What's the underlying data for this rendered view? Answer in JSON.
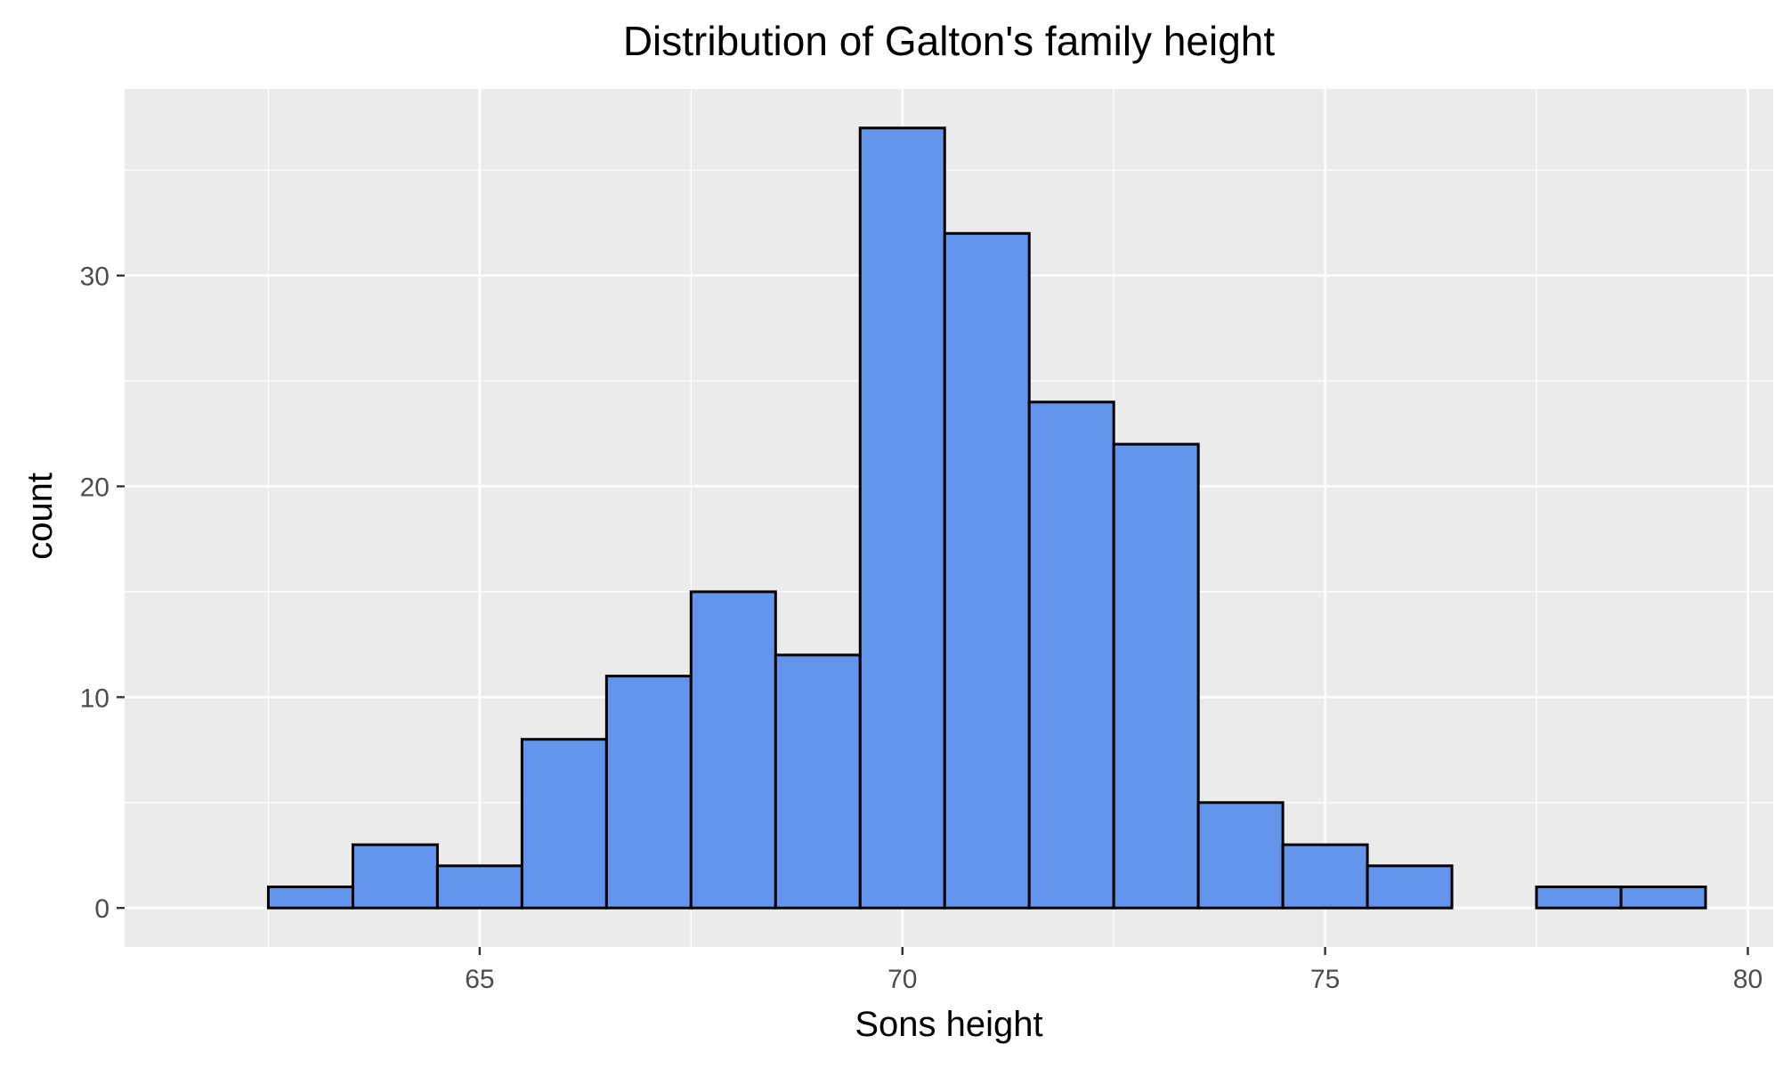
{
  "chart_data": {
    "type": "bar",
    "title": "Distribution of Galton's family height",
    "xlabel": "Sons height",
    "ylabel": "count",
    "bin_width": 1,
    "bins": [
      {
        "start": 62.5,
        "end": 63.5,
        "count": 1
      },
      {
        "start": 63.5,
        "end": 64.5,
        "count": 3
      },
      {
        "start": 64.5,
        "end": 65.5,
        "count": 2
      },
      {
        "start": 65.5,
        "end": 66.5,
        "count": 8
      },
      {
        "start": 66.5,
        "end": 67.5,
        "count": 11
      },
      {
        "start": 67.5,
        "end": 68.5,
        "count": 15
      },
      {
        "start": 68.5,
        "end": 69.5,
        "count": 12
      },
      {
        "start": 69.5,
        "end": 70.5,
        "count": 37
      },
      {
        "start": 70.5,
        "end": 71.5,
        "count": 32
      },
      {
        "start": 71.5,
        "end": 72.5,
        "count": 24
      },
      {
        "start": 72.5,
        "end": 73.5,
        "count": 22
      },
      {
        "start": 73.5,
        "end": 74.5,
        "count": 5
      },
      {
        "start": 74.5,
        "end": 75.5,
        "count": 3
      },
      {
        "start": 75.5,
        "end": 76.5,
        "count": 2
      },
      {
        "start": 76.5,
        "end": 77.5,
        "count": 0
      },
      {
        "start": 77.5,
        "end": 78.5,
        "count": 1
      },
      {
        "start": 78.5,
        "end": 79.5,
        "count": 1
      }
    ],
    "xlim": [
      60.8,
      80.3
    ],
    "ylim": [
      -1.85,
      38.85
    ],
    "x_ticks": [
      65,
      70,
      75,
      80
    ],
    "x_tick_labels": [
      "65",
      "70",
      "75",
      "80"
    ],
    "y_ticks": [
      0,
      10,
      20,
      30
    ],
    "y_tick_labels": [
      "0",
      "10",
      "20",
      "30"
    ],
    "grid": true,
    "legend": "none",
    "colors": {
      "bar_fill": "#6495ED",
      "bar_stroke": "#000000",
      "panel_background": "#EBEBEB",
      "grid": "#FFFFFF"
    }
  }
}
